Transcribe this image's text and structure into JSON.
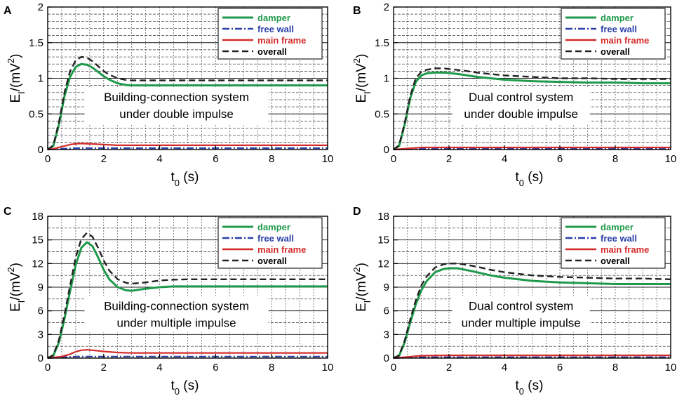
{
  "chart_data": [
    {
      "panel": "A",
      "type": "line",
      "xlabel_main": "t",
      "xlabel_sub": "0",
      "xlabel_unit": "(s)",
      "ylabel_main": "E",
      "ylabel_sub": "I",
      "ylabel_rest": "/(mV",
      "ylabel_sup": "2",
      "ylabel_close": ")",
      "xlim": [
        0,
        10
      ],
      "ylim": [
        0,
        2
      ],
      "xticks": [
        "0",
        "2",
        "4",
        "6",
        "8",
        "10"
      ],
      "yticks": [
        "0",
        "0.5",
        "1",
        "1.5",
        "2"
      ],
      "annotation": [
        "Building-connection system",
        "under double impulse"
      ],
      "legend": [
        "damper",
        "free wall",
        "main frame",
        "overall"
      ],
      "series": [
        {
          "name": "damper",
          "color": "#1f9a4a",
          "style": "solid",
          "x": [
            0,
            0.2,
            0.4,
            0.6,
            0.8,
            1.0,
            1.2,
            1.4,
            1.6,
            1.8,
            2.0,
            2.2,
            2.5,
            2.8,
            3.0,
            3.5,
            4,
            5,
            6,
            7,
            8,
            9,
            10
          ],
          "y": [
            0,
            0.05,
            0.35,
            0.75,
            1.02,
            1.16,
            1.2,
            1.19,
            1.15,
            1.09,
            1.03,
            0.98,
            0.93,
            0.905,
            0.9,
            0.9,
            0.9,
            0.9,
            0.9,
            0.9,
            0.9,
            0.9,
            0.9
          ]
        },
        {
          "name": "free wall",
          "color": "#2b3fa8",
          "style": "dashdot",
          "x": [
            0,
            0.5,
            1,
            2,
            4,
            6,
            8,
            10
          ],
          "y": [
            0,
            0.01,
            0.02,
            0.02,
            0.02,
            0.02,
            0.02,
            0.02
          ]
        },
        {
          "name": "main frame",
          "color": "#d42a2a",
          "style": "solid",
          "x": [
            0,
            0.2,
            0.5,
            0.8,
            1.0,
            1.2,
            1.5,
            2.0,
            2.5,
            3,
            4,
            6,
            8,
            10
          ],
          "y": [
            0,
            0.01,
            0.04,
            0.07,
            0.08,
            0.085,
            0.08,
            0.07,
            0.06,
            0.06,
            0.06,
            0.06,
            0.06,
            0.06
          ]
        },
        {
          "name": "overall",
          "color": "#222222",
          "style": "dashed",
          "x": [
            0,
            0.2,
            0.4,
            0.6,
            0.8,
            1.0,
            1.2,
            1.4,
            1.6,
            1.8,
            2.0,
            2.2,
            2.5,
            2.8,
            3.0,
            3.5,
            4,
            5,
            6,
            7,
            8,
            9,
            10
          ],
          "y": [
            0,
            0.06,
            0.38,
            0.8,
            1.1,
            1.25,
            1.3,
            1.29,
            1.24,
            1.17,
            1.1,
            1.05,
            1.0,
            0.975,
            0.97,
            0.97,
            0.97,
            0.97,
            0.97,
            0.97,
            0.97,
            0.97,
            0.97
          ]
        }
      ]
    },
    {
      "panel": "B",
      "type": "line",
      "xlabel_main": "t",
      "xlabel_sub": "0",
      "xlabel_unit": "(s)",
      "ylabel_main": "E",
      "ylabel_sub": "I",
      "ylabel_rest": "/(mV",
      "ylabel_sup": "2",
      "ylabel_close": ")",
      "xlim": [
        0,
        10
      ],
      "ylim": [
        0,
        2
      ],
      "xticks": [
        "0",
        "2",
        "4",
        "6",
        "8",
        "10"
      ],
      "yticks": [
        "0",
        "0.5",
        "1",
        "1.5",
        "2"
      ],
      "annotation": [
        "Dual control system",
        "under double impulse"
      ],
      "legend": [
        "damper",
        "free wall",
        "main frame",
        "overall"
      ],
      "series": [
        {
          "name": "damper",
          "color": "#1f9a4a",
          "style": "solid",
          "x": [
            0,
            0.2,
            0.4,
            0.6,
            0.8,
            1.0,
            1.2,
            1.5,
            1.8,
            2.0,
            2.5,
            3,
            4,
            5,
            6,
            7,
            8,
            9,
            10
          ],
          "y": [
            0,
            0.05,
            0.35,
            0.72,
            0.95,
            1.04,
            1.07,
            1.08,
            1.08,
            1.075,
            1.05,
            1.02,
            0.98,
            0.96,
            0.95,
            0.94,
            0.94,
            0.93,
            0.93
          ]
        },
        {
          "name": "free wall",
          "color": "#2b3fa8",
          "style": "dashdot",
          "x": [
            0,
            0.5,
            1,
            2,
            4,
            6,
            8,
            10
          ],
          "y": [
            0,
            0.005,
            0.01,
            0.01,
            0.01,
            0.01,
            0.01,
            0.01
          ]
        },
        {
          "name": "main frame",
          "color": "#d42a2a",
          "style": "solid",
          "x": [
            0,
            0.5,
            1,
            2,
            4,
            6,
            8,
            10
          ],
          "y": [
            0,
            0.015,
            0.03,
            0.03,
            0.03,
            0.03,
            0.03,
            0.03
          ]
        },
        {
          "name": "overall",
          "color": "#222222",
          "style": "dashed",
          "x": [
            0,
            0.2,
            0.4,
            0.6,
            0.8,
            1.0,
            1.2,
            1.5,
            1.8,
            2.0,
            2.5,
            3,
            4,
            5,
            6,
            7,
            8,
            9,
            10
          ],
          "y": [
            0,
            0.06,
            0.37,
            0.75,
            1.0,
            1.09,
            1.12,
            1.14,
            1.14,
            1.13,
            1.11,
            1.08,
            1.04,
            1.02,
            1.0,
            1.0,
            0.99,
            0.99,
            0.99
          ]
        }
      ]
    },
    {
      "panel": "C",
      "type": "line",
      "xlabel_main": "t",
      "xlabel_sub": "0",
      "xlabel_unit": "(s)",
      "ylabel_main": "E",
      "ylabel_sub": "I",
      "ylabel_rest": "/(mV",
      "ylabel_sup": "2",
      "ylabel_close": ")",
      "xlim": [
        0,
        10
      ],
      "ylim": [
        0,
        18
      ],
      "xticks": [
        "0",
        "2",
        "4",
        "6",
        "8",
        "10"
      ],
      "yticks": [
        "0",
        "3",
        "6",
        "9",
        "12",
        "15",
        "18"
      ],
      "annotation": [
        "Building-connection system",
        "under multiple impulse"
      ],
      "legend": [
        "damper",
        "free wall",
        "main frame",
        "overall"
      ],
      "series": [
        {
          "name": "damper",
          "color": "#1f9a4a",
          "style": "solid",
          "x": [
            0,
            0.2,
            0.4,
            0.6,
            0.8,
            1.0,
            1.2,
            1.4,
            1.6,
            1.8,
            2.0,
            2.2,
            2.5,
            2.8,
            3.0,
            3.5,
            4,
            4.5,
            5,
            6,
            7,
            8,
            9,
            10
          ],
          "y": [
            0,
            0.3,
            2,
            5,
            8.5,
            11.8,
            14,
            14.7,
            14.2,
            12.8,
            11.2,
            10,
            9,
            8.6,
            8.55,
            8.8,
            9.0,
            9.1,
            9.1,
            9.1,
            9.1,
            9.1,
            9.1,
            9.1
          ]
        },
        {
          "name": "free wall",
          "color": "#2b3fa8",
          "style": "dashdot",
          "x": [
            0,
            0.5,
            1,
            2,
            4,
            6,
            8,
            10
          ],
          "y": [
            0,
            0.1,
            0.2,
            0.2,
            0.2,
            0.2,
            0.2,
            0.2
          ]
        },
        {
          "name": "main frame",
          "color": "#d42a2a",
          "style": "solid",
          "x": [
            0,
            0.5,
            0.8,
            1.0,
            1.2,
            1.4,
            1.6,
            2.0,
            2.5,
            3,
            4,
            6,
            8,
            10
          ],
          "y": [
            0,
            0.2,
            0.5,
            0.8,
            1.0,
            1.05,
            1.0,
            0.85,
            0.7,
            0.65,
            0.65,
            0.65,
            0.65,
            0.65
          ]
        },
        {
          "name": "overall",
          "color": "#222222",
          "style": "dashed",
          "x": [
            0,
            0.2,
            0.4,
            0.6,
            0.8,
            1.0,
            1.2,
            1.4,
            1.6,
            1.8,
            2.0,
            2.2,
            2.5,
            2.8,
            3.0,
            3.5,
            4,
            4.5,
            5,
            6,
            7,
            8,
            9,
            10
          ],
          "y": [
            0,
            0.4,
            2.3,
            5.5,
            9.2,
            12.8,
            15.1,
            15.9,
            15.4,
            14,
            12.4,
            11.1,
            10,
            9.55,
            9.45,
            9.6,
            9.85,
            9.95,
            10,
            10,
            10,
            10,
            10,
            10
          ]
        }
      ]
    },
    {
      "panel": "D",
      "type": "line",
      "xlabel_main": "t",
      "xlabel_sub": "0",
      "xlabel_unit": "(s)",
      "ylabel_main": "E",
      "ylabel_sub": "I",
      "ylabel_rest": "/(mV",
      "ylabel_sup": "2",
      "ylabel_close": ")",
      "xlim": [
        0,
        10
      ],
      "ylim": [
        0,
        18
      ],
      "xticks": [
        "0",
        "2",
        "4",
        "6",
        "8",
        "10"
      ],
      "yticks": [
        "0",
        "3",
        "6",
        "9",
        "12",
        "15",
        "18"
      ],
      "annotation": [
        "Dual control system",
        "under multiple impulse"
      ],
      "legend": [
        "damper",
        "free wall",
        "main frame",
        "overall"
      ],
      "series": [
        {
          "name": "damper",
          "color": "#1f9a4a",
          "style": "solid",
          "x": [
            0,
            0.2,
            0.4,
            0.6,
            0.8,
            1.0,
            1.2,
            1.5,
            1.8,
            2.0,
            2.3,
            2.6,
            3,
            3.5,
            4,
            5,
            6,
            7,
            8,
            9,
            10
          ],
          "y": [
            0,
            0.3,
            2,
            4.5,
            6.8,
            8.6,
            9.8,
            10.9,
            11.3,
            11.4,
            11.4,
            11.2,
            10.9,
            10.5,
            10.2,
            9.8,
            9.6,
            9.5,
            9.4,
            9.4,
            9.4
          ]
        },
        {
          "name": "free wall",
          "color": "#2b3fa8",
          "style": "dashdot",
          "x": [
            0,
            0.5,
            1,
            2,
            4,
            6,
            8,
            10
          ],
          "y": [
            0,
            0.05,
            0.1,
            0.1,
            0.1,
            0.1,
            0.1,
            0.1
          ]
        },
        {
          "name": "main frame",
          "color": "#d42a2a",
          "style": "solid",
          "x": [
            0,
            0.5,
            1,
            2,
            4,
            6,
            8,
            10
          ],
          "y": [
            0,
            0.15,
            0.3,
            0.35,
            0.35,
            0.35,
            0.35,
            0.35
          ]
        },
        {
          "name": "overall",
          "color": "#222222",
          "style": "dashed",
          "x": [
            0,
            0.2,
            0.4,
            0.6,
            0.8,
            1.0,
            1.2,
            1.5,
            1.8,
            2.0,
            2.3,
            2.6,
            3,
            3.5,
            4,
            5,
            6,
            7,
            8,
            9,
            10
          ],
          "y": [
            0,
            0.35,
            2.2,
            4.9,
            7.3,
            9.2,
            10.4,
            11.5,
            11.9,
            12.0,
            12.0,
            11.85,
            11.6,
            11.2,
            10.9,
            10.5,
            10.3,
            10.2,
            10.1,
            10.1,
            10.0
          ]
        }
      ]
    }
  ]
}
